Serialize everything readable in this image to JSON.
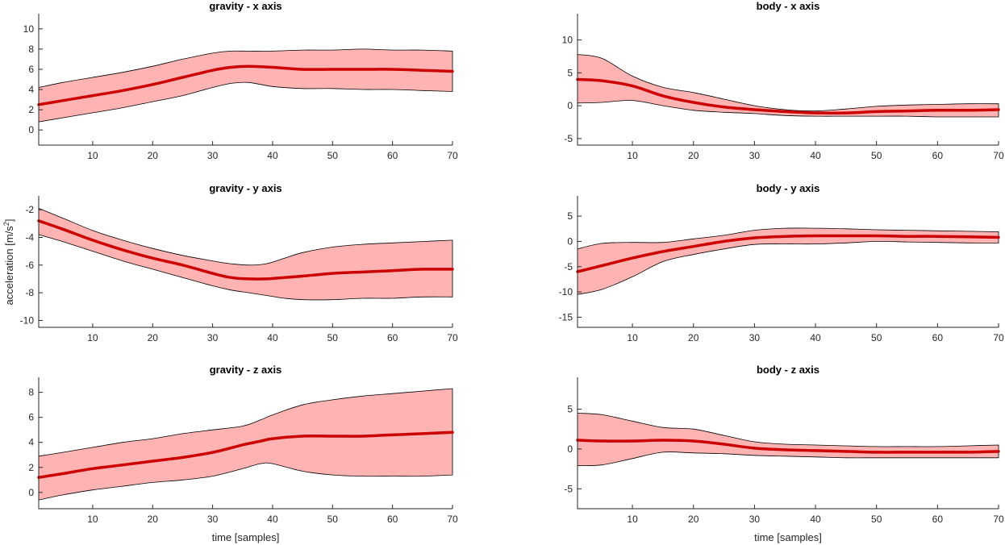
{
  "figure": {
    "ylabel_main": "acceleration [m/s",
    "ylabel_sup": "2",
    "ylabel_end": "]",
    "xlabel": "time [samples]"
  },
  "chart_data": [
    {
      "type": "line",
      "title": "gravity - x axis",
      "xlabel": "",
      "ylabel": "",
      "xlim": [
        1,
        70
      ],
      "ylim": [
        -1.5,
        11.5
      ],
      "xticks": [
        10,
        20,
        30,
        40,
        50,
        60,
        70
      ],
      "yticks": [
        0,
        2,
        4,
        6,
        8,
        10
      ],
      "x": [
        1,
        5,
        10,
        15,
        20,
        25,
        30,
        33,
        36,
        40,
        45,
        50,
        55,
        60,
        65,
        70
      ],
      "series": [
        {
          "name": "upper",
          "values": [
            4.2,
            4.7,
            5.2,
            5.7,
            6.3,
            7.0,
            7.6,
            7.8,
            7.8,
            7.8,
            7.9,
            7.9,
            8.0,
            7.9,
            7.9,
            7.8
          ]
        },
        {
          "name": "mean",
          "values": [
            2.5,
            2.9,
            3.4,
            3.9,
            4.5,
            5.2,
            5.9,
            6.2,
            6.3,
            6.2,
            6.0,
            6.0,
            6.0,
            6.0,
            5.9,
            5.8
          ]
        },
        {
          "name": "lower",
          "values": [
            0.8,
            1.2,
            1.7,
            2.2,
            2.8,
            3.4,
            4.2,
            4.6,
            4.7,
            4.3,
            4.1,
            4.1,
            4.0,
            4.0,
            3.9,
            3.8
          ]
        }
      ]
    },
    {
      "type": "line",
      "title": "body - x axis",
      "xlabel": "",
      "ylabel": "",
      "xlim": [
        1,
        70
      ],
      "ylim": [
        -6,
        14
      ],
      "xticks": [
        10,
        20,
        30,
        40,
        50,
        60,
        70
      ],
      "yticks": [
        -5,
        0,
        5,
        10
      ],
      "x": [
        1,
        5,
        10,
        15,
        20,
        25,
        30,
        35,
        40,
        45,
        50,
        55,
        60,
        65,
        70
      ],
      "series": [
        {
          "name": "upper",
          "values": [
            7.8,
            7.2,
            4.5,
            2.8,
            2.0,
            1.0,
            0.0,
            -0.6,
            -0.8,
            -0.5,
            -0.1,
            0.1,
            0.2,
            0.3,
            0.3
          ]
        },
        {
          "name": "mean",
          "values": [
            4.0,
            3.8,
            3.0,
            1.5,
            0.5,
            -0.2,
            -0.6,
            -0.9,
            -1.1,
            -1.1,
            -0.9,
            -0.8,
            -0.7,
            -0.7,
            -0.6
          ]
        },
        {
          "name": "lower",
          "values": [
            0.4,
            0.5,
            0.8,
            0.0,
            -0.7,
            -1.0,
            -1.2,
            -1.5,
            -1.6,
            -1.6,
            -1.6,
            -1.6,
            -1.7,
            -1.7,
            -1.7
          ]
        }
      ]
    },
    {
      "type": "line",
      "title": "gravity - y axis",
      "xlabel": "",
      "ylabel": "acceleration [m/s2]",
      "xlim": [
        1,
        70
      ],
      "ylim": [
        -10.5,
        -1
      ],
      "xticks": [
        10,
        20,
        30,
        40,
        50,
        60,
        70
      ],
      "yticks": [
        -10,
        -8,
        -6,
        -4,
        -2
      ],
      "x": [
        1,
        5,
        10,
        15,
        20,
        25,
        30,
        33,
        36,
        39,
        42,
        45,
        50,
        55,
        60,
        65,
        70
      ],
      "series": [
        {
          "name": "upper",
          "values": [
            -1.9,
            -2.6,
            -3.5,
            -4.2,
            -4.8,
            -5.3,
            -5.7,
            -5.9,
            -6.0,
            -5.9,
            -5.5,
            -5.1,
            -4.7,
            -4.5,
            -4.4,
            -4.3,
            -4.2
          ]
        },
        {
          "name": "mean",
          "values": [
            -2.8,
            -3.4,
            -4.2,
            -4.9,
            -5.5,
            -6.0,
            -6.6,
            -6.9,
            -7.0,
            -7.0,
            -6.9,
            -6.8,
            -6.6,
            -6.5,
            -6.4,
            -6.3,
            -6.3
          ]
        },
        {
          "name": "lower",
          "values": [
            -3.8,
            -4.3,
            -5.0,
            -5.7,
            -6.3,
            -6.9,
            -7.5,
            -7.8,
            -8.0,
            -8.2,
            -8.4,
            -8.5,
            -8.5,
            -8.4,
            -8.4,
            -8.3,
            -8.3
          ]
        }
      ]
    },
    {
      "type": "line",
      "title": "body - y axis",
      "xlabel": "",
      "ylabel": "",
      "xlim": [
        1,
        70
      ],
      "ylim": [
        -17,
        9
      ],
      "xticks": [
        10,
        20,
        30,
        40,
        50,
        60,
        70
      ],
      "yticks": [
        -15,
        -10,
        -5,
        0,
        5
      ],
      "x": [
        1,
        5,
        10,
        15,
        20,
        25,
        30,
        35,
        40,
        45,
        50,
        55,
        60,
        65,
        70
      ],
      "series": [
        {
          "name": "upper",
          "values": [
            -1.5,
            -0.4,
            -0.2,
            -0.2,
            0.5,
            1.2,
            2.2,
            2.6,
            2.6,
            2.5,
            2.3,
            2.2,
            2.1,
            2.0,
            1.9
          ]
        },
        {
          "name": "mean",
          "values": [
            -6.0,
            -4.8,
            -3.3,
            -2.0,
            -1.0,
            0.0,
            0.7,
            1.0,
            1.1,
            1.1,
            1.1,
            1.0,
            1.0,
            0.9,
            0.8
          ]
        },
        {
          "name": "lower",
          "values": [
            -10.5,
            -9.5,
            -7.0,
            -4.0,
            -2.6,
            -1.5,
            -0.6,
            -0.5,
            -0.5,
            -0.3,
            0.0,
            -0.1,
            -0.2,
            -0.3,
            -0.3
          ]
        }
      ]
    },
    {
      "type": "line",
      "title": "gravity - z axis",
      "xlabel": "time [samples]",
      "ylabel": "",
      "xlim": [
        1,
        70
      ],
      "ylim": [
        -1.3,
        9.2
      ],
      "xticks": [
        10,
        20,
        30,
        40,
        50,
        60,
        70
      ],
      "yticks": [
        0,
        2,
        4,
        6,
        8
      ],
      "x": [
        1,
        5,
        10,
        15,
        20,
        25,
        30,
        35,
        38,
        40,
        45,
        50,
        55,
        60,
        65,
        70
      ],
      "series": [
        {
          "name": "upper",
          "values": [
            2.9,
            3.2,
            3.6,
            4.0,
            4.3,
            4.7,
            5.0,
            5.3,
            5.8,
            6.2,
            7.0,
            7.4,
            7.7,
            7.9,
            8.1,
            8.3
          ]
        },
        {
          "name": "mean",
          "values": [
            1.2,
            1.5,
            1.9,
            2.2,
            2.5,
            2.8,
            3.2,
            3.8,
            4.1,
            4.3,
            4.5,
            4.5,
            4.5,
            4.6,
            4.7,
            4.8
          ]
        },
        {
          "name": "lower",
          "values": [
            -0.6,
            -0.2,
            0.2,
            0.5,
            0.8,
            1.0,
            1.3,
            1.9,
            2.3,
            2.3,
            1.7,
            1.4,
            1.3,
            1.3,
            1.3,
            1.4
          ]
        }
      ]
    },
    {
      "type": "line",
      "title": "body - z axis",
      "xlabel": "time [samples]",
      "ylabel": "",
      "xlim": [
        1,
        70
      ],
      "ylim": [
        -7.5,
        9
      ],
      "xticks": [
        10,
        20,
        30,
        40,
        50,
        60,
        70
      ],
      "yticks": [
        -5,
        0,
        5
      ],
      "x": [
        1,
        5,
        10,
        15,
        20,
        25,
        30,
        35,
        40,
        45,
        50,
        55,
        60,
        65,
        70
      ],
      "series": [
        {
          "name": "upper",
          "values": [
            4.5,
            4.3,
            3.5,
            2.7,
            2.5,
            1.7,
            0.9,
            0.6,
            0.5,
            0.4,
            0.3,
            0.3,
            0.3,
            0.4,
            0.5
          ]
        },
        {
          "name": "mean",
          "values": [
            1.1,
            1.0,
            1.0,
            1.1,
            1.0,
            0.6,
            0.1,
            -0.1,
            -0.2,
            -0.3,
            -0.4,
            -0.4,
            -0.4,
            -0.4,
            -0.3
          ]
        },
        {
          "name": "lower",
          "values": [
            -2.1,
            -2.0,
            -1.2,
            -0.4,
            -0.5,
            -0.6,
            -0.8,
            -0.9,
            -1.0,
            -1.1,
            -1.1,
            -1.1,
            -1.1,
            -1.1,
            -1.1
          ]
        }
      ]
    }
  ]
}
